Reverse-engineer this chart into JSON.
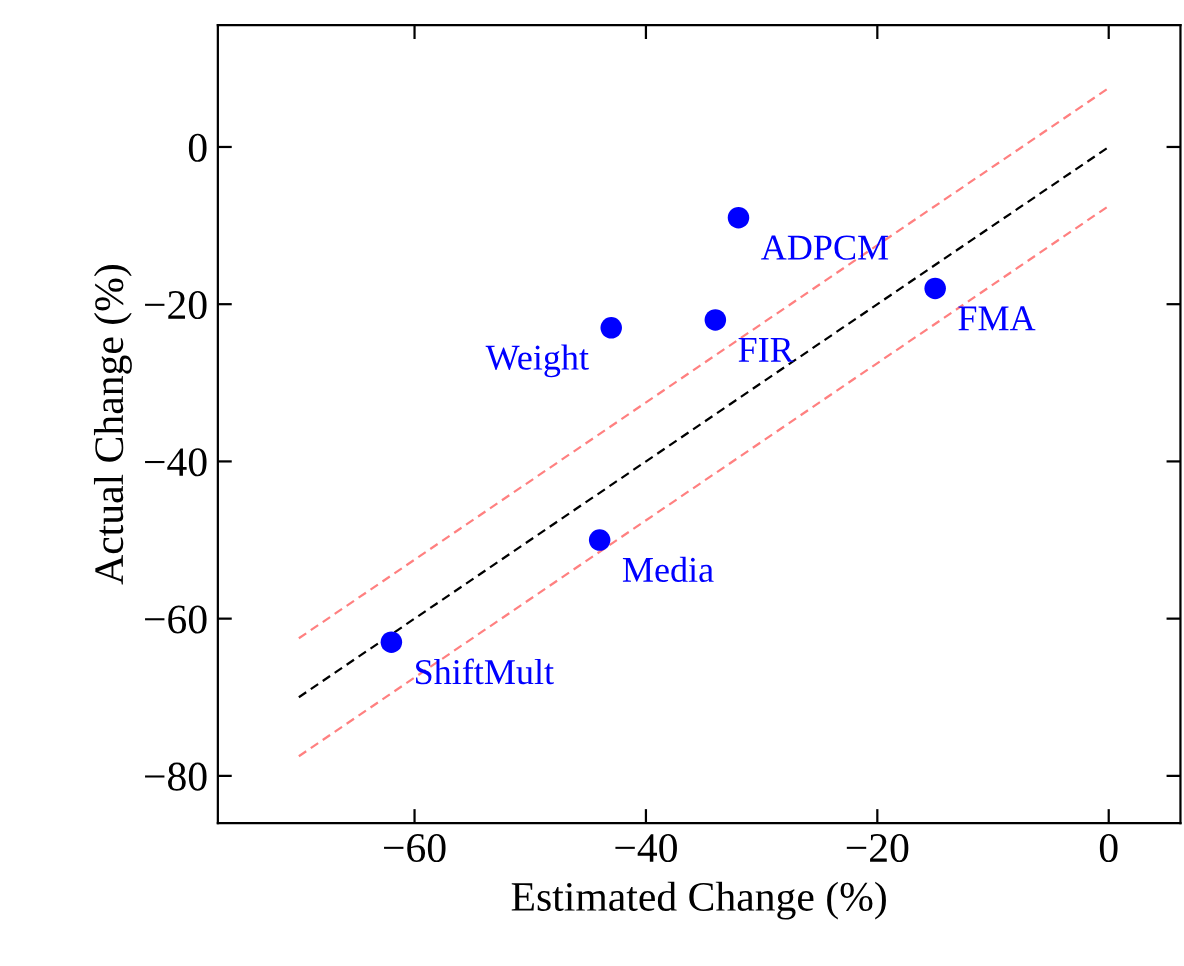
{
  "chart_data": {
    "type": "scatter",
    "xlabel": "Estimated Change (%)",
    "ylabel": "Actual Change (%)",
    "xlim": [
      -77,
      6.2
    ],
    "ylim": [
      -86,
      15.5
    ],
    "xticks": [
      {
        "value": -60,
        "label": "−60"
      },
      {
        "value": -40,
        "label": "−40"
      },
      {
        "value": -20,
        "label": "−20"
      },
      0
    ],
    "yticks": [
      {
        "value": -80,
        "label": "−80"
      },
      {
        "value": -60,
        "label": "−60"
      },
      {
        "value": -40,
        "label": "−40"
      },
      {
        "value": -20,
        "label": "−20"
      },
      0
    ],
    "grid": false,
    "legend": false,
    "marker": "circle",
    "series": [
      {
        "color": "#0000ff",
        "x": [
          -62,
          -44,
          -43,
          -34,
          -32,
          -15
        ],
        "values": [
          -63,
          -50,
          -23,
          -22,
          -9,
          -18
        ]
      },
      {
        "type": "line",
        "color": "#000000",
        "line_style": "dashed",
        "marker": "none",
        "x": [
          -70,
          0
        ],
        "values": [
          -70,
          0
        ]
      },
      {
        "type": "line",
        "color": "#ff8080",
        "line_style": "dashed",
        "marker": "none",
        "x": [
          -70,
          0
        ],
        "values": [
          -62.5,
          7.5
        ]
      },
      {
        "type": "line",
        "color": "#ff8080",
        "line_style": "dashed",
        "marker": "none",
        "x": [
          -70,
          0
        ],
        "values": [
          -77.5,
          -7.5
        ]
      }
    ],
    "annotations": [
      {
        "text": "ShiftMult",
        "x": -62,
        "y": -63
      },
      {
        "text": "Media",
        "x": -44,
        "y": -50
      },
      {
        "text": "Weight",
        "x": -43,
        "y": -23
      },
      {
        "text": "FIR",
        "x": -34,
        "y": -22
      },
      {
        "text": "ADPCM",
        "x": -32,
        "y": -9
      },
      {
        "text": "FMA",
        "x": -15,
        "y": -18
      }
    ]
  }
}
